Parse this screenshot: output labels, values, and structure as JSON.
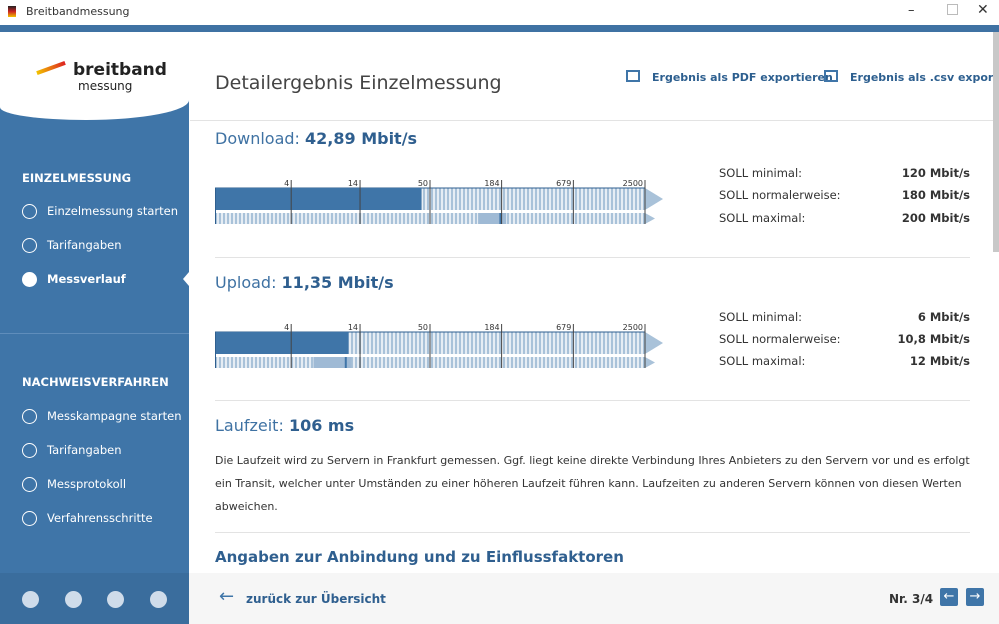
{
  "window": {
    "title": "Breitbandmessung"
  },
  "sidebar": {
    "logo": {
      "line1": "breitband",
      "line2": "messung"
    },
    "section1": {
      "title": "EINZELMESSUNG",
      "items": [
        "Einzelmessung starten",
        "Tarifangaben",
        "Messverlauf"
      ]
    },
    "section2": {
      "title": "NACHWEISVERFAHREN",
      "items": [
        "Messkampagne starten",
        "Tarifangaben",
        "Messprotokoll",
        "Verfahrensschritte"
      ]
    }
  },
  "header": {
    "title": "Detailergebnis Einzelmessung",
    "actions": [
      "Ergebnis als PDF exportieren",
      "Ergebnis als .csv exportieren"
    ]
  },
  "scale": {
    "xlim": [
      1,
      2500
    ],
    "xticks": [
      4,
      14,
      50,
      184,
      679,
      2500
    ],
    "log": true
  },
  "download": {
    "label": "Download:",
    "value": 42.89,
    "value_label": "42,89 Mbit/s",
    "soll": [
      {
        "label": "SOLL minimal:",
        "value": 120,
        "value_label": "120 Mbit/s"
      },
      {
        "label": "SOLL normalerweise:",
        "value": 180,
        "value_label": "180 Mbit/s"
      },
      {
        "label": "SOLL maximal:",
        "value": 200,
        "value_label": "200 Mbit/s"
      }
    ]
  },
  "upload": {
    "label": "Upload:",
    "value": 11.35,
    "value_label": "11,35 Mbit/s",
    "soll": [
      {
        "label": "SOLL minimal:",
        "value": 6,
        "value_label": "6 Mbit/s"
      },
      {
        "label": "SOLL normalerweise:",
        "value": 10.8,
        "value_label": "10,8 Mbit/s"
      },
      {
        "label": "SOLL maximal:",
        "value": 12,
        "value_label": "12 Mbit/s"
      }
    ]
  },
  "latency": {
    "label": "Laufzeit:",
    "value_label": "106 ms",
    "text": "Die Laufzeit wird zu Servern in Frankfurt gemessen. Ggf. liegt keine direkte Verbindung Ihres Anbieters zu den Servern vor und es erfolgt ein Transit, welcher unter Umständen zu einer höheren Laufzeit führen kann. Laufzeiten zu anderen Servern können von diesen Werten abweichen."
  },
  "section_title": "Angaben zur Anbindung und zu Einflussfaktoren",
  "footer": {
    "back": "zurück zur Übersicht",
    "page": "Nr. 3/4"
  }
}
